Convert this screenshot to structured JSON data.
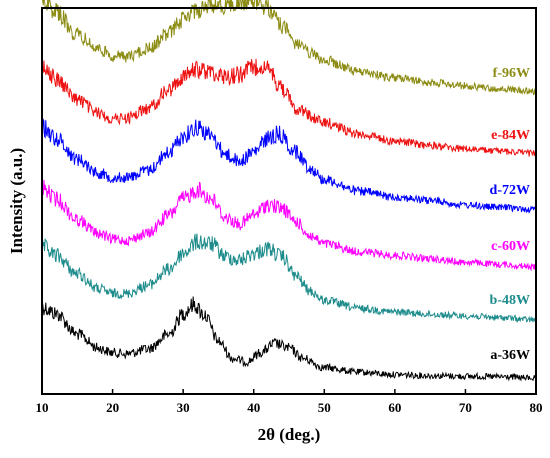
{
  "chart_data": {
    "type": "line",
    "xlabel": "2θ (deg.)",
    "ylabel": "Intensity (a.u.)",
    "xlim": [
      10,
      80
    ],
    "x_ticks": [
      "10",
      "20",
      "30",
      "40",
      "50",
      "60",
      "70",
      "80"
    ],
    "y_ticks_shown": false,
    "grid": false,
    "legend": "inline labels at right end of each curve",
    "series": [
      {
        "name": "a-36W",
        "color": "#000000",
        "x": [
          10,
          12,
          15,
          18,
          20,
          22,
          25,
          28,
          30,
          31.5,
          33,
          35,
          37,
          39,
          41,
          43,
          45,
          47,
          50,
          55,
          60,
          65,
          70,
          75,
          80
        ],
        "values": [
          0.62,
          0.56,
          0.38,
          0.26,
          0.22,
          0.21,
          0.25,
          0.38,
          0.56,
          0.64,
          0.55,
          0.32,
          0.17,
          0.14,
          0.22,
          0.3,
          0.26,
          0.17,
          0.09,
          0.05,
          0.03,
          0.02,
          0.015,
          0.01,
          0.0
        ]
      },
      {
        "name": "b-48W",
        "color": "#1f8c8c",
        "x": [
          10,
          12,
          15,
          18,
          20,
          22,
          25,
          28,
          30,
          32,
          34,
          36,
          38,
          40,
          42,
          44,
          46,
          48,
          50,
          55,
          60,
          65,
          70,
          75,
          80
        ],
        "values": [
          0.64,
          0.56,
          0.4,
          0.27,
          0.23,
          0.23,
          0.3,
          0.44,
          0.58,
          0.68,
          0.66,
          0.55,
          0.52,
          0.58,
          0.62,
          0.55,
          0.38,
          0.25,
          0.17,
          0.1,
          0.07,
          0.05,
          0.035,
          0.02,
          0.0
        ]
      },
      {
        "name": "c-60W",
        "color": "#ff00ff",
        "x": [
          10,
          12,
          15,
          18,
          20,
          22,
          25,
          28,
          30,
          32,
          34,
          36,
          38,
          40,
          42,
          44,
          46,
          48,
          50,
          55,
          60,
          65,
          70,
          75,
          80
        ],
        "values": [
          0.7,
          0.6,
          0.42,
          0.3,
          0.25,
          0.24,
          0.3,
          0.46,
          0.6,
          0.68,
          0.6,
          0.44,
          0.38,
          0.46,
          0.55,
          0.52,
          0.4,
          0.28,
          0.21,
          0.14,
          0.11,
          0.08,
          0.05,
          0.03,
          0.01
        ]
      },
      {
        "name": "d-72W",
        "color": "#0000ff",
        "x": [
          10,
          12,
          15,
          18,
          20,
          22,
          25,
          28,
          30,
          32,
          34,
          36,
          38,
          40,
          42,
          43.5,
          46,
          48,
          50,
          55,
          60,
          65,
          70,
          75,
          80
        ],
        "values": [
          0.74,
          0.64,
          0.46,
          0.34,
          0.3,
          0.3,
          0.36,
          0.52,
          0.66,
          0.74,
          0.66,
          0.5,
          0.44,
          0.52,
          0.64,
          0.68,
          0.52,
          0.38,
          0.28,
          0.18,
          0.13,
          0.1,
          0.06,
          0.04,
          0.02
        ]
      },
      {
        "name": "e-84W",
        "color": "#ee1111",
        "x": [
          10,
          12,
          15,
          18,
          20,
          22,
          25,
          28,
          30,
          32,
          34,
          36,
          38,
          40,
          41,
          42,
          44,
          46,
          50,
          55,
          60,
          65,
          70,
          75,
          80
        ],
        "values": [
          0.8,
          0.68,
          0.5,
          0.38,
          0.33,
          0.34,
          0.42,
          0.58,
          0.7,
          0.76,
          0.74,
          0.7,
          0.72,
          0.78,
          0.8,
          0.76,
          0.6,
          0.42,
          0.3,
          0.2,
          0.14,
          0.1,
          0.07,
          0.05,
          0.03
        ]
      },
      {
        "name": "f-96W",
        "color": "#8c8c14",
        "x": [
          10,
          12,
          15,
          18,
          20,
          22,
          25,
          28,
          30,
          32,
          34,
          36,
          38,
          40,
          42,
          44,
          46,
          48,
          50,
          55,
          60,
          65,
          70,
          75,
          80
        ],
        "values": [
          0.85,
          0.72,
          0.52,
          0.4,
          0.34,
          0.33,
          0.4,
          0.54,
          0.66,
          0.74,
          0.78,
          0.78,
          0.8,
          0.82,
          0.76,
          0.6,
          0.45,
          0.36,
          0.3,
          0.2,
          0.15,
          0.11,
          0.08,
          0.05,
          0.03
        ]
      }
    ]
  }
}
